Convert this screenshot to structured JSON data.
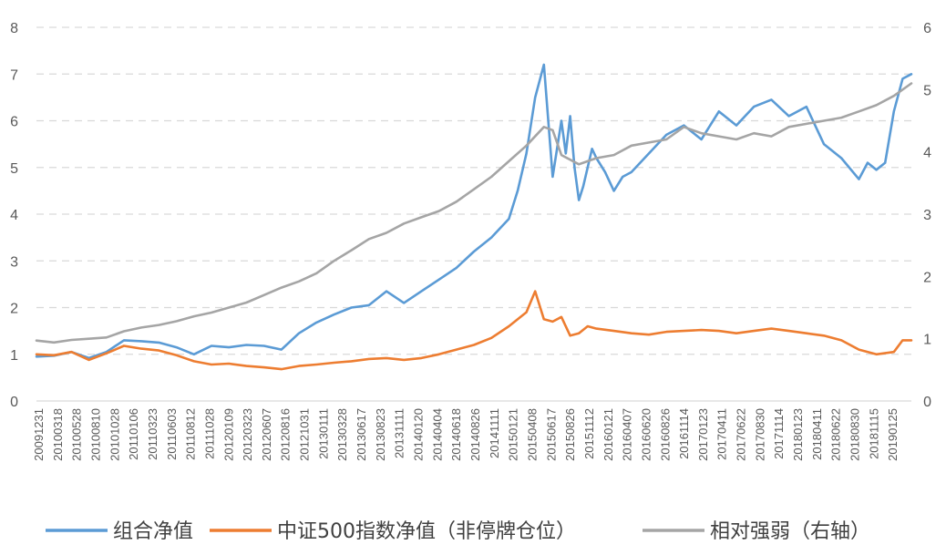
{
  "chart_data": {
    "type": "line",
    "title": "",
    "xlabel": "",
    "ylabel": "",
    "y_left": {
      "min": 0,
      "max": 8,
      "ticks": [
        "0",
        "1",
        "2",
        "3",
        "4",
        "5",
        "6",
        "7",
        "8"
      ]
    },
    "y_right": {
      "min": 0,
      "max": 6,
      "ticks": [
        "0",
        "1",
        "2",
        "3",
        "4",
        "5",
        "6"
      ]
    },
    "grid": true,
    "legend_position": "bottom",
    "x_tick_labels": [
      "20091231",
      "20100318",
      "20100528",
      "20100810",
      "20101028",
      "20110106",
      "20110323",
      "20110603",
      "20110812",
      "20111028",
      "20120109",
      "20120323",
      "20120607",
      "20120816",
      "20121031",
      "20130111",
      "20130328",
      "20130617",
      "20130823",
      "20131111",
      "20140120",
      "20140404",
      "20140618",
      "20140826",
      "20141111",
      "20150121",
      "20150408",
      "20150617",
      "20150826",
      "20151112",
      "20160121",
      "20160407",
      "20160620",
      "20160826",
      "20161114",
      "20170123",
      "20170411",
      "20170622",
      "20170830",
      "20171114",
      "20180123",
      "20180411",
      "20180622",
      "20180830",
      "20181115",
      "20190125"
    ],
    "x_range": [
      0,
      100
    ],
    "series": [
      {
        "name": "组合净值",
        "axis": "left",
        "color": "#5b9bd5",
        "x": [
          0,
          2,
          4,
          6,
          8,
          10,
          12,
          14,
          16,
          18,
          20,
          22,
          24,
          26,
          28,
          30,
          32,
          34,
          36,
          38,
          40,
          42,
          44,
          46,
          48,
          50,
          52,
          54,
          55,
          56,
          57,
          58,
          59,
          60,
          60.5,
          61,
          61.5,
          62,
          62.5,
          63,
          63.5,
          64,
          65,
          66,
          67,
          68,
          70,
          72,
          74,
          76,
          78,
          80,
          82,
          84,
          86,
          88,
          90,
          92,
          94,
          95,
          96,
          97,
          98,
          99,
          100
        ],
        "values": [
          0.95,
          0.97,
          1.05,
          0.92,
          1.05,
          1.3,
          1.28,
          1.25,
          1.15,
          1.0,
          1.18,
          1.15,
          1.2,
          1.18,
          1.1,
          1.45,
          1.68,
          1.85,
          2.0,
          2.05,
          2.35,
          2.1,
          2.35,
          2.6,
          2.85,
          3.2,
          3.5,
          3.9,
          4.5,
          5.3,
          6.5,
          7.2,
          4.8,
          6.0,
          5.3,
          6.1,
          5.0,
          4.3,
          4.6,
          5.0,
          5.4,
          5.2,
          4.9,
          4.5,
          4.8,
          4.9,
          5.3,
          5.7,
          5.9,
          5.6,
          6.2,
          5.9,
          6.3,
          6.45,
          6.1,
          6.3,
          5.5,
          5.2,
          4.75,
          5.1,
          4.95,
          5.1,
          6.2,
          6.9,
          7.0
        ]
      },
      {
        "name": "中证500指数净值（非停牌仓位）",
        "axis": "left",
        "color": "#ed7d31",
        "x": [
          0,
          2,
          4,
          6,
          8,
          10,
          12,
          14,
          16,
          18,
          20,
          22,
          24,
          26,
          28,
          30,
          32,
          34,
          36,
          38,
          40,
          42,
          44,
          46,
          48,
          50,
          52,
          54,
          56,
          57,
          58,
          59,
          60,
          61,
          62,
          63,
          64,
          66,
          68,
          70,
          72,
          74,
          76,
          78,
          80,
          82,
          84,
          86,
          88,
          90,
          92,
          94,
          96,
          98,
          99,
          100
        ],
        "values": [
          1.0,
          0.98,
          1.05,
          0.88,
          1.02,
          1.18,
          1.12,
          1.08,
          0.98,
          0.85,
          0.78,
          0.8,
          0.75,
          0.72,
          0.68,
          0.75,
          0.78,
          0.82,
          0.85,
          0.9,
          0.92,
          0.88,
          0.92,
          1.0,
          1.1,
          1.2,
          1.35,
          1.6,
          1.9,
          2.35,
          1.75,
          1.7,
          1.8,
          1.4,
          1.45,
          1.6,
          1.55,
          1.5,
          1.45,
          1.42,
          1.48,
          1.5,
          1.52,
          1.5,
          1.45,
          1.5,
          1.55,
          1.5,
          1.45,
          1.4,
          1.3,
          1.1,
          1.0,
          1.05,
          1.3,
          1.3
        ]
      },
      {
        "name": "相对强弱（右轴）",
        "axis": "right",
        "color": "#a5a5a5",
        "x": [
          0,
          2,
          4,
          6,
          8,
          10,
          12,
          14,
          16,
          18,
          20,
          22,
          24,
          26,
          28,
          30,
          32,
          34,
          36,
          38,
          40,
          42,
          44,
          46,
          48,
          50,
          52,
          54,
          56,
          58,
          59,
          60,
          62,
          63,
          64,
          66,
          68,
          70,
          72,
          74,
          76,
          78,
          80,
          82,
          84,
          86,
          88,
          90,
          92,
          94,
          96,
          98,
          100
        ],
        "values": [
          0.97,
          0.94,
          0.98,
          1.0,
          1.02,
          1.12,
          1.18,
          1.22,
          1.28,
          1.36,
          1.42,
          1.5,
          1.58,
          1.7,
          1.82,
          1.92,
          2.05,
          2.25,
          2.42,
          2.6,
          2.7,
          2.85,
          2.95,
          3.05,
          3.2,
          3.4,
          3.6,
          3.85,
          4.1,
          4.4,
          4.35,
          3.95,
          3.8,
          3.85,
          3.9,
          3.95,
          4.1,
          4.15,
          4.2,
          4.4,
          4.3,
          4.25,
          4.2,
          4.3,
          4.25,
          4.4,
          4.45,
          4.5,
          4.55,
          4.65,
          4.75,
          4.9,
          5.1
        ]
      }
    ]
  }
}
